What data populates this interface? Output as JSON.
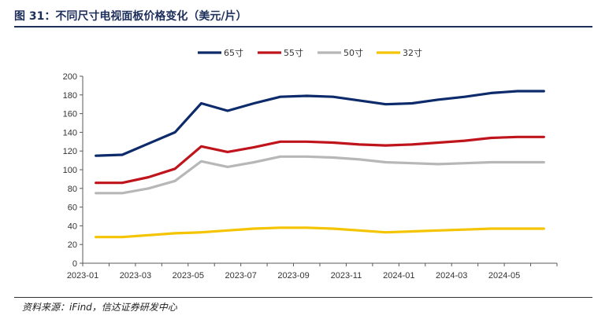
{
  "figure": {
    "title": "图 31：不同尺寸电视面板价格变化（美元/片）",
    "source": "资料来源：iFind，信达证券研发中心"
  },
  "chart_data": {
    "type": "line",
    "x": [
      "2023-01",
      "2023-02",
      "2023-03",
      "2023-04",
      "2023-05",
      "2023-06",
      "2023-07",
      "2023-08",
      "2023-09",
      "2023-10",
      "2023-11",
      "2023-12",
      "2024-01",
      "2024-02",
      "2024-03",
      "2024-04",
      "2024-05",
      "2024-06"
    ],
    "x_tick_labels": [
      "2023-01",
      "2023-03",
      "2023-05",
      "2023-07",
      "2023-09",
      "2023-11",
      "2024-01",
      "2024-03",
      "2024-05"
    ],
    "ylim": [
      0,
      200
    ],
    "y_ticks": [
      0,
      20,
      40,
      60,
      80,
      100,
      120,
      140,
      160,
      180,
      200
    ],
    "grid": false,
    "legend_position": "top",
    "series": [
      {
        "name": "65寸",
        "color": "#0d2a6b",
        "values": [
          115,
          116,
          128,
          140,
          171,
          163,
          171,
          178,
          179,
          178,
          174,
          170,
          171,
          175,
          178,
          182,
          184,
          184
        ]
      },
      {
        "name": "55寸",
        "color": "#c0141c",
        "values": [
          86,
          86,
          92,
          101,
          125,
          119,
          124,
          130,
          130,
          129,
          127,
          126,
          127,
          129,
          131,
          134,
          135,
          135
        ]
      },
      {
        "name": "50寸",
        "color": "#b7b7b7",
        "values": [
          75,
          75,
          80,
          88,
          109,
          103,
          108,
          114,
          114,
          113,
          111,
          108,
          107,
          106,
          107,
          108,
          108,
          108
        ]
      },
      {
        "name": "32寸",
        "color": "#f5c400",
        "values": [
          28,
          28,
          30,
          32,
          33,
          35,
          37,
          38,
          38,
          37,
          35,
          33,
          34,
          35,
          36,
          37,
          37,
          37
        ]
      }
    ]
  }
}
